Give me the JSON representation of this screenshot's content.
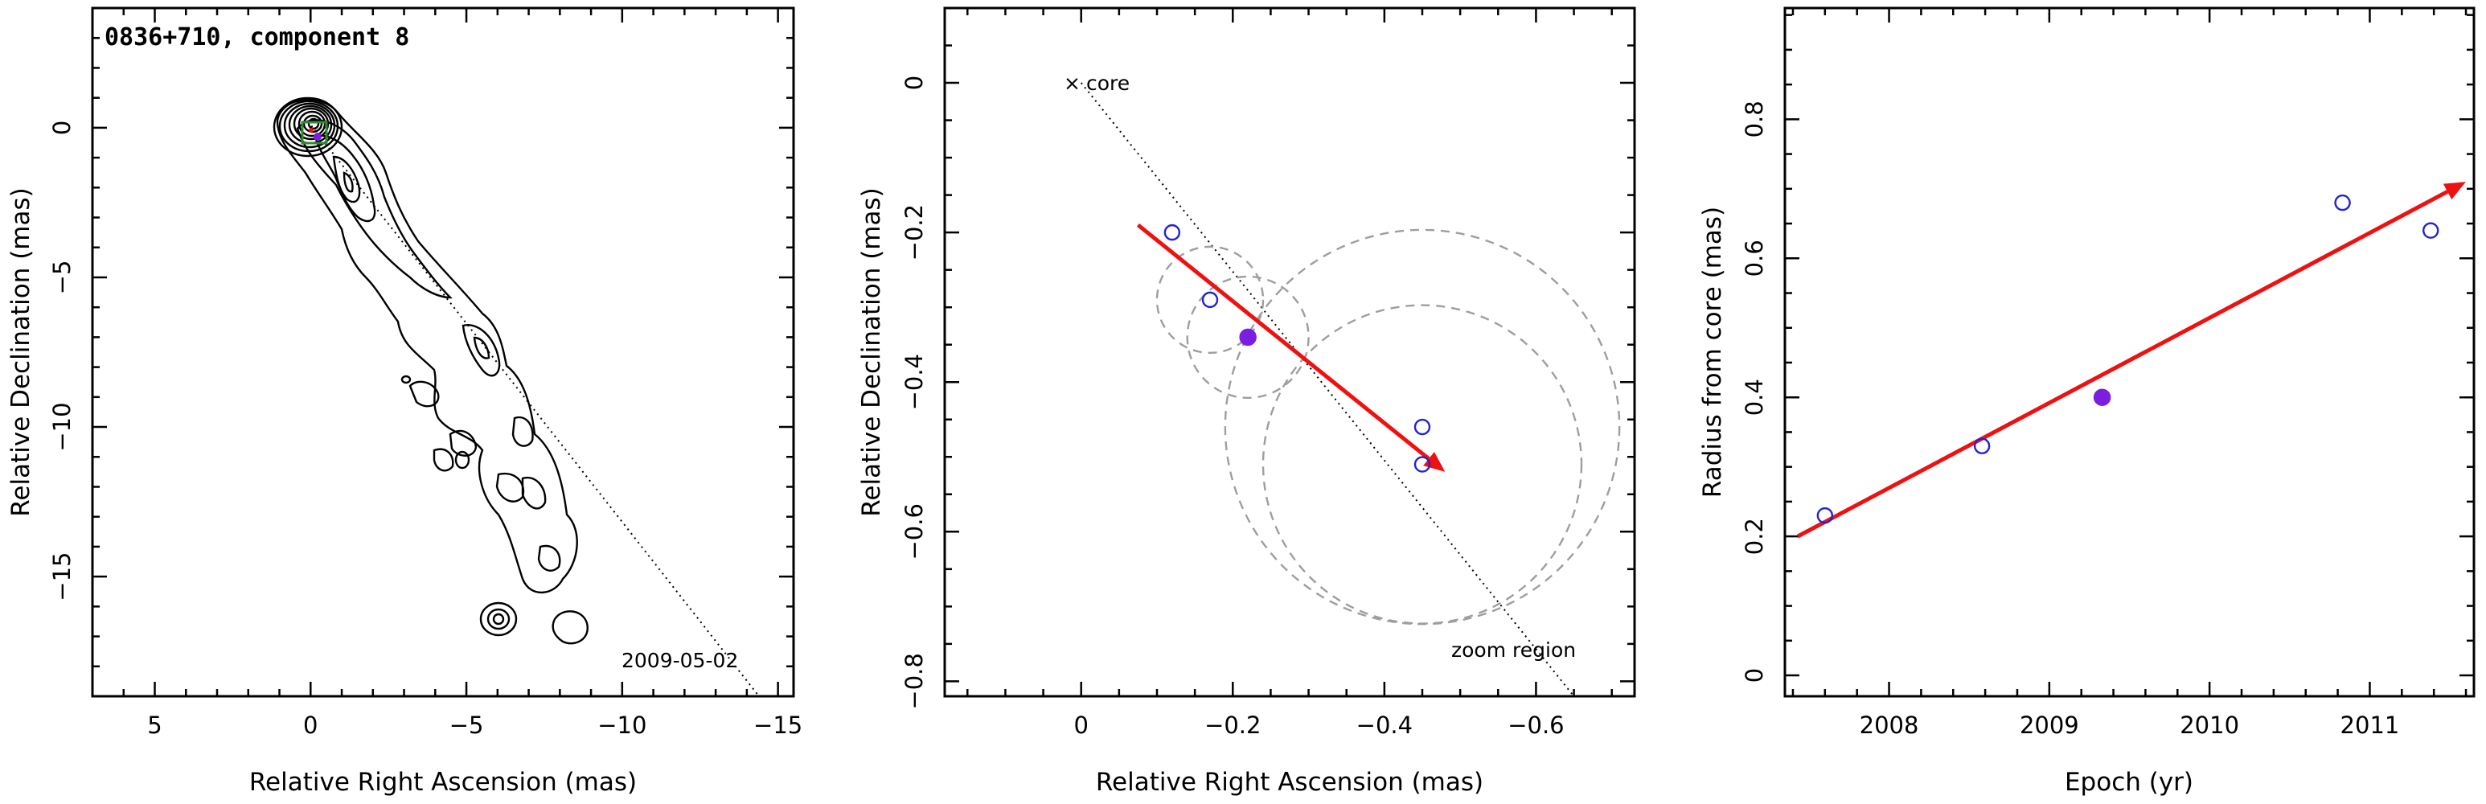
{
  "panel1": {
    "title": "0836+710, component 8",
    "xlabel": "Relative Right Ascension (mas)",
    "ylabel": "Relative Declination (mas)",
    "date": "2009-05-02",
    "xticks": [
      5,
      0,
      -5,
      -10,
      -15
    ],
    "yticks": [
      0,
      -5,
      -10,
      -15
    ]
  },
  "panel2": {
    "xlabel": "Relative Right Ascension (mas)",
    "ylabel": "Relative Declination (mas)",
    "core_label": "core",
    "core_marker": "×",
    "zoom_label": "zoom region",
    "xticks": [
      0,
      -0.2,
      -0.4,
      -0.6
    ],
    "yticks": [
      0,
      -0.2,
      -0.4,
      -0.6,
      -0.8
    ]
  },
  "panel3": {
    "xlabel": "Epoch (yr)",
    "ylabel": "Radius from core (mas)",
    "xticks": [
      2008,
      2009,
      2010,
      2011
    ],
    "yticks": [
      0,
      0.2,
      0.4,
      0.6,
      0.8
    ]
  },
  "colors": {
    "arrow": "#ee1111",
    "open_points": "#2323d6",
    "filled_point": "#7b1ee0",
    "component_circles": "#9e9e9e",
    "green_box": "#2e8b2e"
  },
  "chart_data": [
    {
      "type": "contour",
      "title": "0836+710, component 8",
      "xlabel": "Relative Right Ascension (mas)",
      "ylabel": "Relative Declination (mas)",
      "xlim": [
        7,
        -15.5
      ],
      "ylim": [
        -19,
        4
      ],
      "annotations": [
        "2009-05-02"
      ],
      "jet_ridge_points": [
        {
          "x": 0,
          "y": 0
        },
        {
          "x": -1.6,
          "y": -2
        },
        {
          "x": -2.5,
          "y": -4
        },
        {
          "x": -3.8,
          "y": -5.5
        },
        {
          "x": -5.4,
          "y": -7.2
        },
        {
          "x": -6.2,
          "y": -9.8
        },
        {
          "x": -7.4,
          "y": -12.5
        },
        {
          "x": -8.0,
          "y": -14.5
        }
      ],
      "detached_blobs": [
        {
          "x": -6.1,
          "y": -16.4
        },
        {
          "x": -8.3,
          "y": -16.9
        }
      ]
    },
    {
      "type": "scatter",
      "xlabel": "Relative Right Ascension (mas)",
      "ylabel": "Relative Declination (mas)",
      "xlim": [
        0.18,
        -0.73
      ],
      "ylim": [
        -0.82,
        0.1
      ],
      "annotations": [
        "× core",
        "zoom region"
      ],
      "series": [
        {
          "marker": "open",
          "x": [
            -0.12,
            -0.17,
            -0.45,
            -0.45
          ],
          "y": [
            -0.2,
            -0.29,
            -0.46,
            -0.51
          ]
        },
        {
          "marker": "filled",
          "x": [
            -0.22
          ],
          "y": [
            -0.34
          ]
        }
      ],
      "component_circles": [
        {
          "x": -0.17,
          "y": -0.29,
          "radius": 0.07
        },
        {
          "x": -0.22,
          "y": -0.34,
          "radius": 0.08
        },
        {
          "x": -0.45,
          "y": -0.46,
          "radius": 0.26
        },
        {
          "x": -0.45,
          "y": -0.51,
          "radius": 0.21
        }
      ],
      "arrow": {
        "from": {
          "x": -0.075,
          "y": -0.19
        },
        "to": {
          "x": -0.48,
          "y": -0.52
        }
      },
      "core_direction_line": {
        "from": {
          "x": 0.0,
          "y": 0.0
        },
        "to": {
          "x": -0.65,
          "y": -0.82
        }
      }
    },
    {
      "type": "scatter",
      "xlabel": "Epoch (yr)",
      "ylabel": "Radius from core (mas)",
      "xlim": [
        2007.35,
        2011.65
      ],
      "ylim": [
        -0.03,
        0.96
      ],
      "series": [
        {
          "marker": "open",
          "x": [
            2007.6,
            2008.58,
            2010.83,
            2011.38
          ],
          "y": [
            0.23,
            0.33,
            0.68,
            0.64
          ]
        },
        {
          "marker": "filled",
          "x": [
            2009.33
          ],
          "y": [
            0.4
          ]
        }
      ],
      "fit_arrow": {
        "from": {
          "x": 2007.43,
          "y": 0.2
        },
        "to": {
          "x": 2011.6,
          "y": 0.71
        }
      }
    }
  ]
}
